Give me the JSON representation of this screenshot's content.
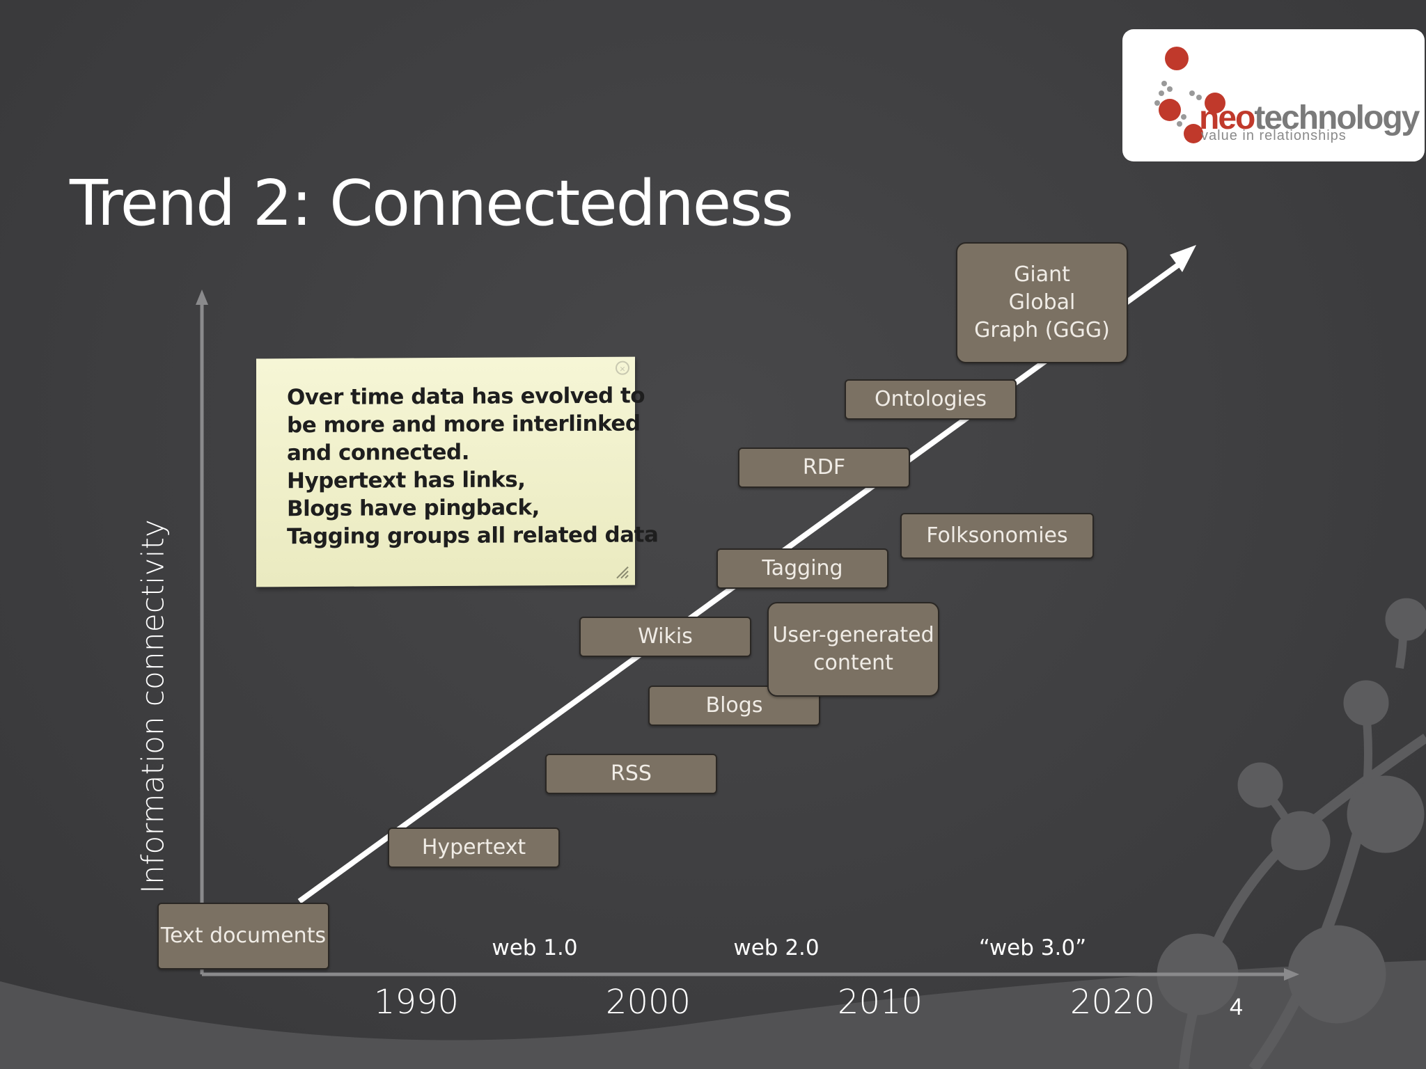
{
  "slide": {
    "title": "Trend 2: Connectedness",
    "page_number": "4"
  },
  "logo": {
    "name_part1": "neo",
    "name_part2": "technology",
    "tagline": "value in relationships",
    "accent_color": "#c0392b"
  },
  "axes": {
    "y_label": "Information connectivity",
    "eras": [
      "web 1.0",
      "web 2.0",
      "“web 3.0”"
    ],
    "years": [
      "1990",
      "2000",
      "2010",
      "2020"
    ]
  },
  "note": {
    "text": "Over time data has evolved to\nbe more and more interlinked\nand connected.\nHypertext has links,\nBlogs have pingback,\nTagging groups all related data"
  },
  "stages": {
    "text_documents": "Text documents",
    "hypertext": "Hypertext",
    "rss": "RSS",
    "blogs": "Blogs",
    "wikis": "Wikis",
    "user_generated": "User-generated\ncontent",
    "tagging": "Tagging",
    "folksonomies": "Folksonomies",
    "rdf": "RDF",
    "ontologies": "Ontologies",
    "ggg": "Giant\nGlobal\nGraph (GGG)"
  },
  "colors": {
    "background": "#3f3f41",
    "box_fill": "#7b7163",
    "note_fill": "#f2f2cc",
    "logo_dot": "#c0392b"
  }
}
